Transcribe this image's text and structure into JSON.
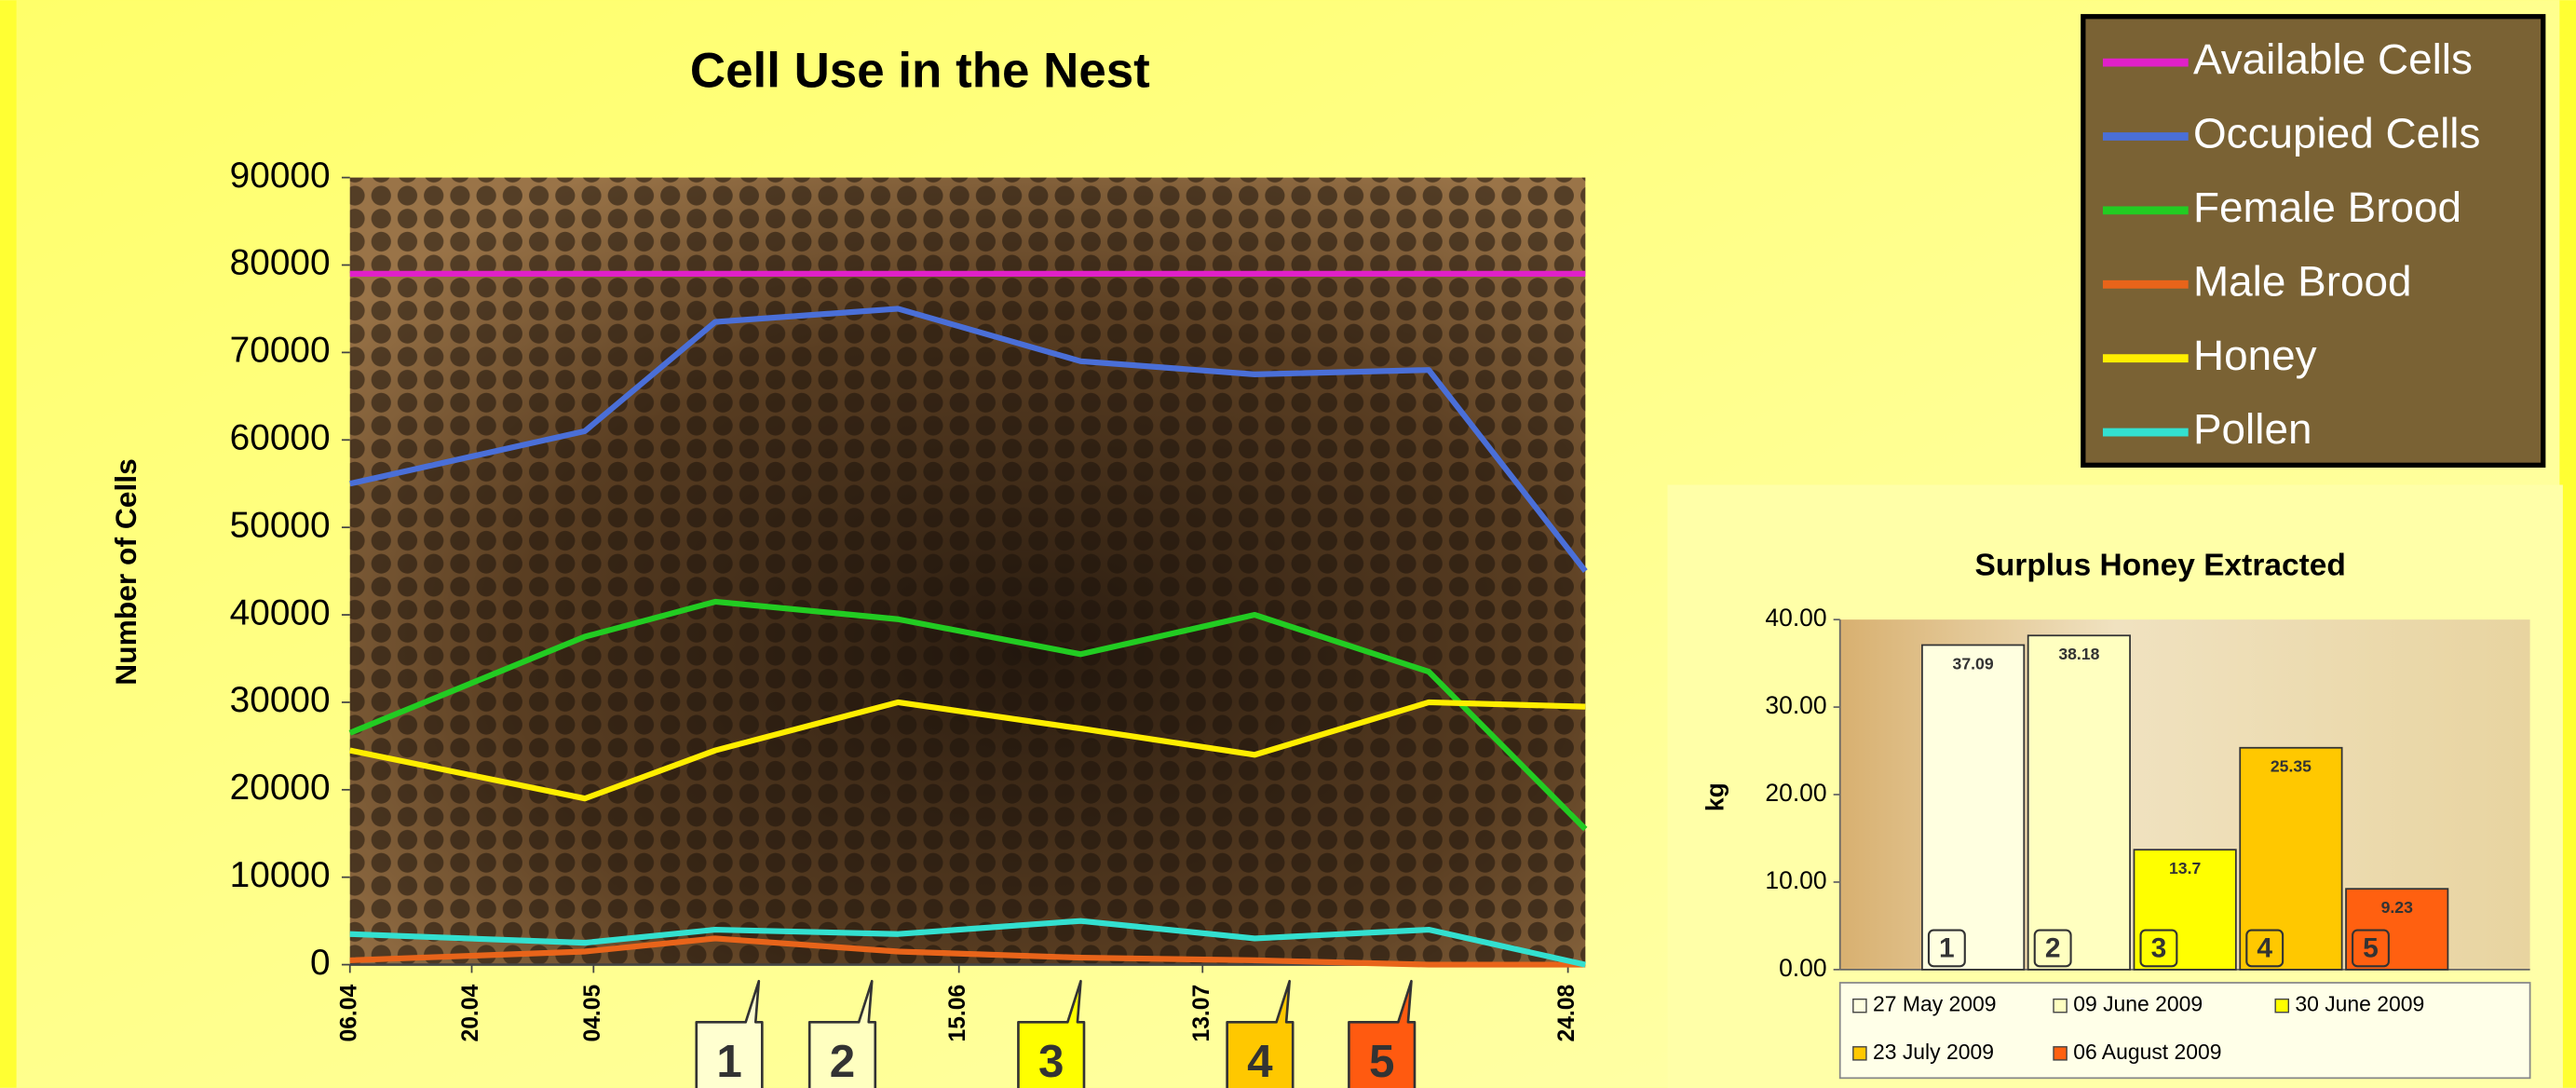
{
  "chart_data": [
    {
      "type": "line",
      "title": "Cell Use in the Nest",
      "y_label": "Number of Cells",
      "x": [
        0,
        27,
        42,
        63,
        84,
        104,
        124,
        142
      ],
      "xlim": [
        0,
        142
      ],
      "xticks": [
        {
          "value": 0,
          "label": "06.04"
        },
        {
          "value": 14,
          "label": "20.04"
        },
        {
          "value": 28,
          "label": "04.05"
        },
        {
          "value": 70,
          "label": "15.06"
        },
        {
          "value": 98,
          "label": "13.07"
        },
        {
          "value": 140,
          "label": "24.08"
        }
      ],
      "ylim": [
        0,
        90000
      ],
      "yticks": [
        0,
        10000,
        20000,
        30000,
        40000,
        50000,
        60000,
        70000,
        80000,
        90000
      ],
      "legend": "top-right",
      "series": [
        {
          "name": "Available Cells",
          "color": "#e020c8",
          "values": [
            79000,
            79000,
            79000,
            79000,
            79000,
            79000,
            79000,
            79000
          ]
        },
        {
          "name": "Occupied Cells",
          "color": "#4a6fd8",
          "values": [
            55000,
            61000,
            73500,
            75000,
            69000,
            67500,
            68000,
            45000
          ]
        },
        {
          "name": "Female Brood",
          "color": "#22cc22",
          "values": [
            26500,
            37500,
            41500,
            39500,
            35500,
            40000,
            33500,
            15500
          ]
        },
        {
          "name": "Male Brood",
          "color": "#e8641a",
          "values": [
            500,
            1500,
            3000,
            1500,
            800,
            500,
            0,
            0
          ]
        },
        {
          "name": "Honey",
          "color": "#ffee00",
          "values": [
            24500,
            19000,
            24500,
            30000,
            27000,
            24000,
            30000,
            29500
          ]
        },
        {
          "name": "Pollen",
          "color": "#33e0d0",
          "values": [
            3500,
            2500,
            4000,
            3500,
            5000,
            3000,
            4000,
            0
          ]
        }
      ],
      "annotations": [
        {
          "x": 47,
          "label": "1",
          "color": "#ffffd0"
        },
        {
          "x": 60,
          "label": "2",
          "color": "#ffffc0"
        },
        {
          "x": 84,
          "label": "3",
          "color": "#ffff00"
        },
        {
          "x": 108,
          "label": "4",
          "color": "#ffc800"
        },
        {
          "x": 122,
          "label": "5",
          "color": "#ff5a10"
        }
      ]
    },
    {
      "type": "bar",
      "title": "Surplus Honey Extracted",
      "y_label": "kg",
      "categories": [
        "27 May 2009",
        "09 June 2009",
        "30 June 2009",
        "23 July 2009",
        "06 August 2009"
      ],
      "values": [
        37.09,
        38.18,
        13.7,
        25.35,
        9.23
      ],
      "colors": [
        "#ffffe0",
        "#ffffc0",
        "#ffff00",
        "#ffc800",
        "#ff6010"
      ],
      "markers": [
        "1",
        "2",
        "3",
        "4",
        "5"
      ],
      "ylim": [
        0,
        40
      ],
      "yticks": [
        {
          "value": 0,
          "label": "0.00"
        },
        {
          "value": 10,
          "label": "10.00"
        },
        {
          "value": 20,
          "label": "20.00"
        },
        {
          "value": 30,
          "label": "30.00"
        },
        {
          "value": 40,
          "label": "40.00"
        }
      ]
    }
  ]
}
